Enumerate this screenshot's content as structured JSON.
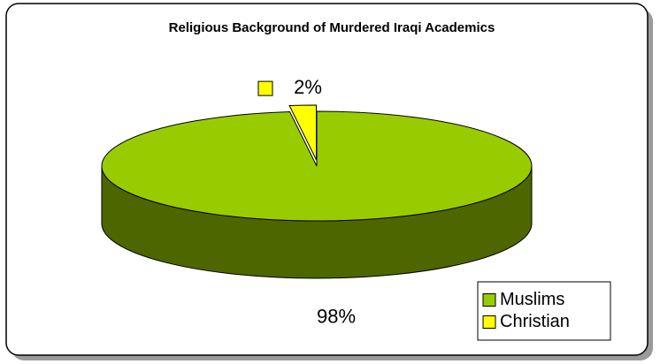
{
  "chart_data": {
    "type": "pie",
    "title": "Religious Background of Murdered Iraqi Academics",
    "categories": [
      "Muslims",
      "Christian"
    ],
    "values": [
      98,
      2
    ],
    "value_labels": [
      "98%",
      "2%"
    ],
    "colors": [
      "#99cc00",
      "#ffff00"
    ],
    "legend": "bottom-right",
    "three_d": true
  }
}
